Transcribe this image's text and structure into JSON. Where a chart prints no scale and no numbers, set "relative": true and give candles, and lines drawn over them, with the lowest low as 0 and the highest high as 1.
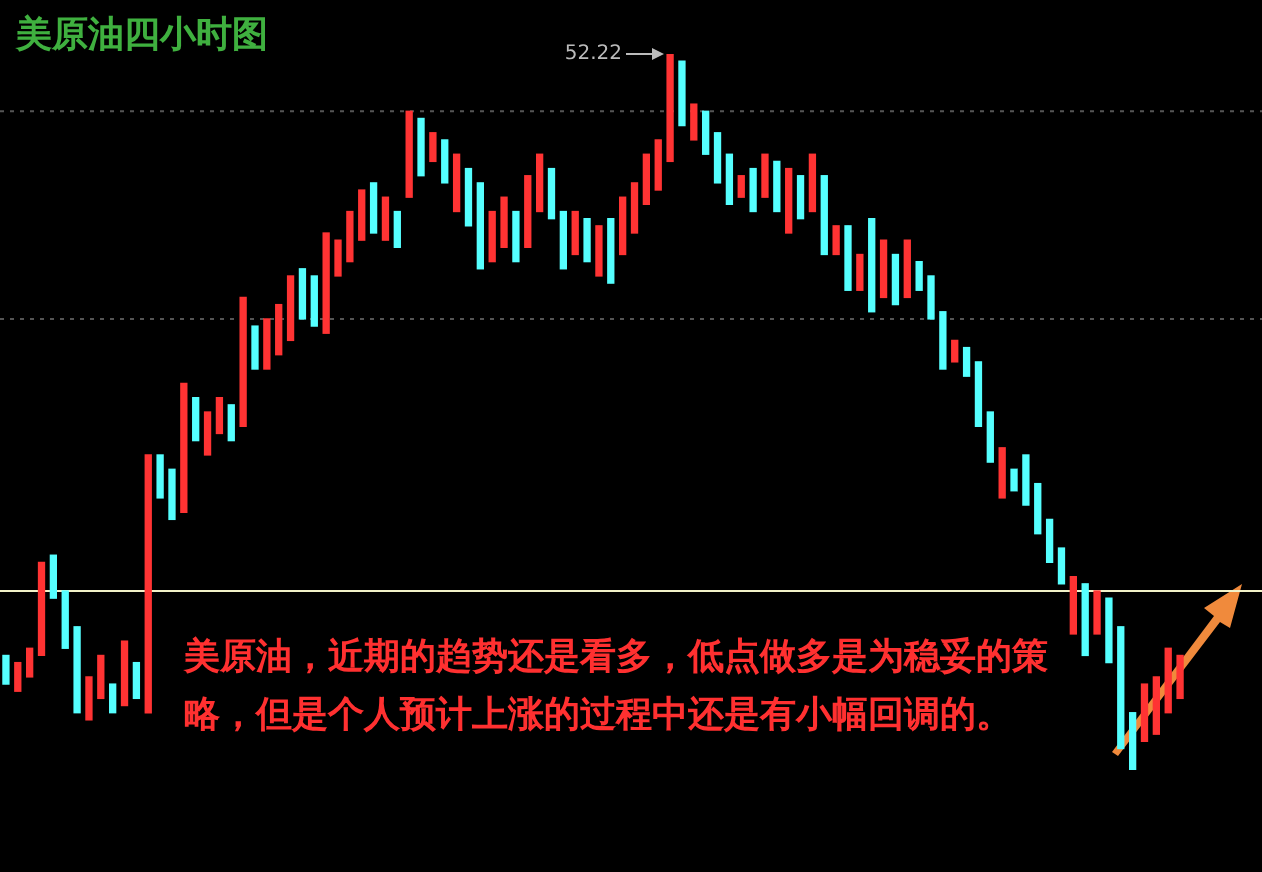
{
  "chart_data": {
    "type": "candlestick",
    "title": "美原油四小时图",
    "relative": true,
    "categories": [
      null,
      null,
      null,
      null,
      null,
      null,
      null,
      null,
      null,
      null,
      null,
      null,
      null,
      null,
      null,
      null,
      null,
      null,
      null,
      null,
      null,
      null,
      null,
      null,
      null,
      null,
      null,
      null,
      null,
      null,
      null,
      null,
      null,
      null,
      null,
      null,
      null,
      null,
      null,
      null,
      null,
      null,
      null,
      null,
      null,
      null,
      null,
      null,
      null,
      null,
      null,
      null,
      null,
      null,
      null,
      null,
      null,
      null,
      null,
      null,
      null,
      null,
      null,
      null,
      null,
      null,
      null,
      null,
      null,
      null,
      null,
      null,
      null,
      null,
      null,
      null,
      null,
      null,
      null,
      null,
      null,
      null,
      null,
      null,
      null,
      null,
      null,
      null,
      null,
      null,
      null,
      null,
      null,
      null,
      null,
      null,
      null,
      null,
      null,
      null
    ],
    "ohlc": [
      [
        0.16,
        0.16,
        0.12,
        0.12
      ],
      [
        0.11,
        0.15,
        0.11,
        0.15
      ],
      [
        0.13,
        0.17,
        0.13,
        0.17
      ],
      [
        0.16,
        0.29,
        0.16,
        0.29
      ],
      [
        0.3,
        0.3,
        0.24,
        0.24
      ],
      [
        0.25,
        0.25,
        0.17,
        0.17
      ],
      [
        0.2,
        0.2,
        0.08,
        0.08
      ],
      [
        0.07,
        0.13,
        0.07,
        0.13
      ],
      [
        0.1,
        0.16,
        0.1,
        0.16
      ],
      [
        0.12,
        0.12,
        0.08,
        0.08
      ],
      [
        0.09,
        0.18,
        0.09,
        0.18
      ],
      [
        0.15,
        0.15,
        0.1,
        0.1
      ],
      [
        0.08,
        0.44,
        0.08,
        0.44
      ],
      [
        0.44,
        0.44,
        0.38,
        0.38
      ],
      [
        0.42,
        0.42,
        0.35,
        0.35
      ],
      [
        0.36,
        0.54,
        0.36,
        0.54
      ],
      [
        0.52,
        0.52,
        0.46,
        0.46
      ],
      [
        0.44,
        0.5,
        0.44,
        0.5
      ],
      [
        0.47,
        0.52,
        0.47,
        0.52
      ],
      [
        0.51,
        0.51,
        0.46,
        0.46
      ],
      [
        0.48,
        0.66,
        0.48,
        0.66
      ],
      [
        0.62,
        0.62,
        0.56,
        0.56
      ],
      [
        0.56,
        0.63,
        0.56,
        0.63
      ],
      [
        0.58,
        0.65,
        0.58,
        0.65
      ],
      [
        0.6,
        0.69,
        0.6,
        0.69
      ],
      [
        0.7,
        0.7,
        0.63,
        0.63
      ],
      [
        0.69,
        0.69,
        0.62,
        0.62
      ],
      [
        0.61,
        0.75,
        0.61,
        0.75
      ],
      [
        0.69,
        0.74,
        0.69,
        0.74
      ],
      [
        0.71,
        0.78,
        0.71,
        0.78
      ],
      [
        0.74,
        0.81,
        0.74,
        0.81
      ],
      [
        0.82,
        0.82,
        0.75,
        0.75
      ],
      [
        0.74,
        0.8,
        0.74,
        0.8
      ],
      [
        0.78,
        0.78,
        0.73,
        0.73
      ],
      [
        0.8,
        0.92,
        0.8,
        0.92
      ],
      [
        0.91,
        0.91,
        0.83,
        0.83
      ],
      [
        0.85,
        0.89,
        0.85,
        0.89
      ],
      [
        0.88,
        0.88,
        0.82,
        0.82
      ],
      [
        0.78,
        0.86,
        0.78,
        0.86
      ],
      [
        0.84,
        0.84,
        0.76,
        0.76
      ],
      [
        0.82,
        0.82,
        0.7,
        0.7
      ],
      [
        0.71,
        0.78,
        0.71,
        0.78
      ],
      [
        0.73,
        0.8,
        0.73,
        0.8
      ],
      [
        0.78,
        0.78,
        0.71,
        0.71
      ],
      [
        0.73,
        0.83,
        0.73,
        0.83
      ],
      [
        0.78,
        0.86,
        0.78,
        0.86
      ],
      [
        0.84,
        0.84,
        0.77,
        0.77
      ],
      [
        0.78,
        0.78,
        0.7,
        0.7
      ],
      [
        0.72,
        0.78,
        0.72,
        0.78
      ],
      [
        0.77,
        0.77,
        0.71,
        0.71
      ],
      [
        0.69,
        0.76,
        0.69,
        0.76
      ],
      [
        0.77,
        0.77,
        0.68,
        0.68
      ],
      [
        0.72,
        0.8,
        0.72,
        0.8
      ],
      [
        0.75,
        0.82,
        0.75,
        0.82
      ],
      [
        0.79,
        0.86,
        0.79,
        0.86
      ],
      [
        0.81,
        0.88,
        0.81,
        0.88
      ],
      [
        0.85,
        1,
        0.85,
        1
      ],
      [
        0.99,
        0.99,
        0.9,
        0.9
      ],
      [
        0.88,
        0.93,
        0.88,
        0.93
      ],
      [
        0.92,
        0.92,
        0.86,
        0.86
      ],
      [
        0.89,
        0.89,
        0.82,
        0.82
      ],
      [
        0.86,
        0.86,
        0.79,
        0.79
      ],
      [
        0.8,
        0.83,
        0.8,
        0.83
      ],
      [
        0.84,
        0.84,
        0.78,
        0.78
      ],
      [
        0.8,
        0.86,
        0.8,
        0.86
      ],
      [
        0.85,
        0.85,
        0.78,
        0.78
      ],
      [
        0.75,
        0.84,
        0.75,
        0.84
      ],
      [
        0.83,
        0.83,
        0.77,
        0.77
      ],
      [
        0.78,
        0.86,
        0.78,
        0.86
      ],
      [
        0.83,
        0.83,
        0.72,
        0.72
      ],
      [
        0.72,
        0.76,
        0.72,
        0.76
      ],
      [
        0.76,
        0.76,
        0.67,
        0.67
      ],
      [
        0.67,
        0.72,
        0.67,
        0.72
      ],
      [
        0.77,
        0.77,
        0.64,
        0.64
      ],
      [
        0.66,
        0.74,
        0.66,
        0.74
      ],
      [
        0.72,
        0.72,
        0.65,
        0.65
      ],
      [
        0.66,
        0.74,
        0.66,
        0.74
      ],
      [
        0.71,
        0.71,
        0.67,
        0.67
      ],
      [
        0.69,
        0.69,
        0.63,
        0.63
      ],
      [
        0.64,
        0.64,
        0.56,
        0.56
      ],
      [
        0.57,
        0.6,
        0.57,
        0.6
      ],
      [
        0.59,
        0.59,
        0.55,
        0.55
      ],
      [
        0.57,
        0.57,
        0.48,
        0.48
      ],
      [
        0.5,
        0.5,
        0.43,
        0.43
      ],
      [
        0.38,
        0.45,
        0.38,
        0.45
      ],
      [
        0.42,
        0.42,
        0.39,
        0.39
      ],
      [
        0.44,
        0.44,
        0.37,
        0.37
      ],
      [
        0.4,
        0.4,
        0.33,
        0.33
      ],
      [
        0.35,
        0.35,
        0.29,
        0.29
      ],
      [
        0.31,
        0.31,
        0.26,
        0.26
      ],
      [
        0.19,
        0.27,
        0.19,
        0.27
      ],
      [
        0.26,
        0.26,
        0.16,
        0.16
      ],
      [
        0.19,
        0.25,
        0.19,
        0.25
      ],
      [
        0.24,
        0.24,
        0.15,
        0.15
      ],
      [
        0.2,
        0.2,
        0.03,
        0.03
      ],
      [
        0.08,
        0.08,
        0,
        0
      ],
      [
        0.04,
        0.12,
        0.04,
        0.12
      ],
      [
        0.05,
        0.13,
        0.05,
        0.13
      ],
      [
        0.08,
        0.17,
        0.08,
        0.17
      ],
      [
        0.1,
        0.16,
        0.1,
        0.16
      ]
    ],
    "colors": [
      "#55ffff",
      "#ff3333",
      "#ff3333",
      "#ff3333",
      "#55ffff",
      "#55ffff",
      "#55ffff",
      "#ff3333",
      "#ff3333",
      "#55ffff",
      "#ff3333",
      "#55ffff",
      "#ff3333",
      "#55ffff",
      "#55ffff",
      "#ff3333",
      "#55ffff",
      "#ff3333",
      "#ff3333",
      "#55ffff",
      "#ff3333",
      "#55ffff",
      "#ff3333",
      "#ff3333",
      "#ff3333",
      "#55ffff",
      "#55ffff",
      "#ff3333",
      "#ff3333",
      "#ff3333",
      "#ff3333",
      "#55ffff",
      "#ff3333",
      "#55ffff",
      "#ff3333",
      "#55ffff",
      "#ff3333",
      "#55ffff",
      "#ff3333",
      "#55ffff",
      "#55ffff",
      "#ff3333",
      "#ff3333",
      "#55ffff",
      "#ff3333",
      "#ff3333",
      "#55ffff",
      "#55ffff",
      "#ff3333",
      "#55ffff",
      "#ff3333",
      "#55ffff",
      "#ff3333",
      "#ff3333",
      "#ff3333",
      "#ff3333",
      "#ff3333",
      "#55ffff",
      "#ff3333",
      "#55ffff",
      "#55ffff",
      "#55ffff",
      "#ff3333",
      "#55ffff",
      "#ff3333",
      "#55ffff",
      "#ff3333",
      "#55ffff",
      "#ff3333",
      "#55ffff",
      "#ff3333",
      "#55ffff",
      "#ff3333",
      "#55ffff",
      "#ff3333",
      "#55ffff",
      "#ff3333",
      "#55ffff",
      "#55ffff",
      "#55ffff",
      "#ff3333",
      "#55ffff",
      "#55ffff",
      "#55ffff",
      "#ff3333",
      "#55ffff",
      "#55ffff",
      "#55ffff",
      "#55ffff",
      "#55ffff",
      "#ff3333",
      "#55ffff",
      "#ff3333",
      "#55ffff",
      "#55ffff",
      "#55ffff",
      "#ff3333",
      "#ff3333",
      "#ff3333",
      "#ff3333"
    ],
    "ref_lines": [
      {
        "axis": "y",
        "value": 0.92,
        "color": "#555555",
        "line_style": "dotted"
      },
      {
        "axis": "y",
        "value": 0.63,
        "color": "#555555",
        "line_style": "dotted"
      },
      {
        "axis": "y",
        "value": 0.25,
        "color": "#f2f2c8",
        "line_style": "solid"
      }
    ],
    "annotations": [
      "52.22",
      "美原油，近期的趋势还是看多，低点做多是为稳妥的策略，但是个人预计上涨的过程中还是有小幅回调的。"
    ],
    "tick_labels": false,
    "legend": false
  }
}
